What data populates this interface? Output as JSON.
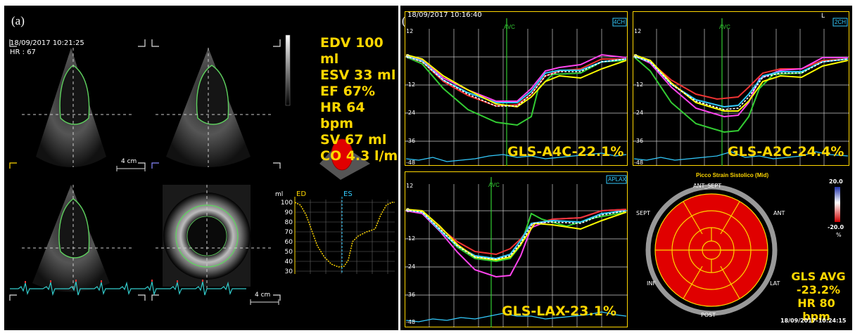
{
  "panel_a": {
    "label": "(a)",
    "timestamp": "18/09/2017 10:21:25",
    "hr": "HR : 67",
    "scale_left": "4 cm",
    "scale_right": "4 cm",
    "stats": [
      "EDV 100 ml",
      "ESV 33 ml",
      "EF 67%",
      "HR 64 bpm",
      "SV 67 ml",
      "CO 4.3 l/m"
    ],
    "volume_chart": {
      "unit": "ml",
      "ed": "ED",
      "es": "ES",
      "ticks": [
        "100",
        "90",
        "80",
        "70",
        "60",
        "50",
        "40",
        "30"
      ]
    }
  },
  "panel_b": {
    "label": "(b)",
    "top_left": {
      "timestamp": "18/09/2017 10:16:40",
      "view": "4CH",
      "avc": "AVC",
      "gls": "GLS-A4C-22.1%",
      "yticks": [
        "12",
        "0",
        "-12",
        "-24",
        "-36",
        "-48"
      ]
    },
    "top_right": {
      "view": "2CH",
      "avc": "AVC",
      "gls": "GLS-A2C-24.4%",
      "corner": "L",
      "yticks": [
        "12",
        "0",
        "-12",
        "-24",
        "-36",
        "-48"
      ]
    },
    "bottom_left": {
      "view": "APLAX",
      "avc": "AVC",
      "gls": "GLS-LAX-23.1%",
      "yticks": [
        "12",
        "0",
        "-12",
        "-24",
        "-36",
        "-48"
      ]
    },
    "bullseye": {
      "title": "Picco Strain Sistolico (Mid)",
      "labels": {
        "ant_sept": "ANT_SEPT",
        "sept": "SEPT",
        "ant": "ANT",
        "inf": "INF",
        "lat": "LAT",
        "post": "POST"
      },
      "scale_max": "20.0",
      "scale_min": "-20.0",
      "scale_unit": "%",
      "gls_avg": "GLS AVG",
      "gls_value": "-23.2%",
      "hr": "HR 80 bpm",
      "timestamp": "18/09/2017-10:24:15"
    }
  }
}
